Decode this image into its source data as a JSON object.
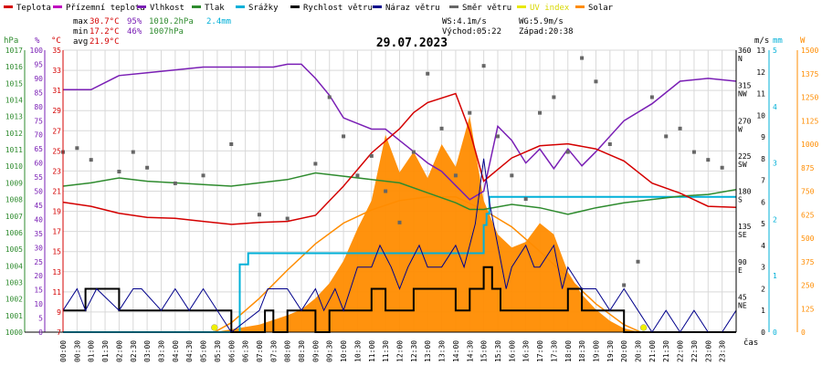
{
  "chart_data": {
    "type": "line",
    "title": "29.07.2023",
    "legend": [
      {
        "key": "teplota",
        "label": "Teplota",
        "color": "#d40000"
      },
      {
        "key": "prizemni",
        "label": "Přízemní teplota",
        "color": "#c000c0"
      },
      {
        "key": "vlhkost",
        "label": "Vlhkost",
        "color": "#7a1fb5"
      },
      {
        "key": "tlak",
        "label": "Tlak",
        "color": "#2e8b2e"
      },
      {
        "key": "srazky",
        "label": "Srážky",
        "color": "#00b0d8"
      },
      {
        "key": "rychlost",
        "label": "Rychlost větru",
        "color": "#000000"
      },
      {
        "key": "naraz",
        "label": "Náraz větru",
        "color": "#00008b"
      },
      {
        "key": "smer",
        "label": "Směr větru",
        "color": "#666666"
      },
      {
        "key": "uv",
        "label": "UV index",
        "color": "#e8e800"
      },
      {
        "key": "solar",
        "label": "Solar",
        "color": "#ff8c00"
      }
    ],
    "stats": {
      "max_label": "max",
      "max_temp": "30.7°C",
      "max_hum": "95%",
      "max_press": "1010.2hPa",
      "rain": "2.4mm",
      "min_label": "min",
      "min_temp": "17.2°C",
      "min_hum": "46%",
      "min_press": "1007hPa",
      "avg_label": "avg",
      "avg_temp": "21.9°C",
      "ws": "WS:4.1m/s",
      "wg": "WG:5.9m/s",
      "sunrise": "Východ:05:22",
      "sunset": "Západ:20:38"
    },
    "axis_units": {
      "hpa": "hPa",
      "pct": "%",
      "temp": "°C",
      "ms": "m/s",
      "mm": "mm",
      "w": "W",
      "time": "čas"
    },
    "axis_colors": {
      "hpa": "#2e8b2e",
      "pct": "#7a1fb5",
      "temp": "#d40000",
      "ms": "#000000",
      "mm": "#00b0d8",
      "w": "#ff8c00"
    },
    "hpa_ticks": [
      "1017",
      "1016",
      "1015",
      "1014",
      "1013",
      "1012",
      "1011",
      "1010",
      "1009",
      "1008",
      "1007",
      "1006",
      "1005",
      "1004",
      "1003",
      "1002",
      "1001",
      "1000"
    ],
    "pct_ticks": [
      "100",
      "95",
      "90",
      "85",
      "80",
      "75",
      "70",
      "65",
      "60",
      "55",
      "50",
      "45",
      "40",
      "35",
      "30",
      "25",
      "20",
      "15",
      "10",
      "5",
      "0"
    ],
    "temp_ticks": [
      "35",
      "33",
      "31",
      "29",
      "27",
      "25",
      "23",
      "21",
      "19",
      "17",
      "15",
      "13",
      "11",
      "9",
      "7"
    ],
    "dir_ticks": [
      "360\nN",
      "315\nNW",
      "270\nW",
      "225\nSW",
      "180\nS",
      "135\nSE",
      "90\nE",
      "45\nNE",
      ""
    ],
    "ms_ticks": [
      "13",
      "12",
      "11",
      "10",
      "9",
      "8",
      "7",
      "6",
      "5",
      "4",
      "3",
      "2",
      "1",
      "0"
    ],
    "mm_ticks": [
      "5",
      "4",
      "3",
      "2",
      "1",
      "0"
    ],
    "w_ticks": [
      "1500",
      "1375",
      "1250",
      "1125",
      "1000",
      "875",
      "750",
      "625",
      "500",
      "375",
      "250",
      "125",
      "0"
    ],
    "time_ticks": [
      "00:00",
      "00:30",
      "01:00",
      "01:30",
      "02:00",
      "02:30",
      "03:00",
      "03:30",
      "04:00",
      "04:30",
      "05:00",
      "05:30",
      "06:00",
      "06:30",
      "07:00",
      "07:30",
      "08:00",
      "08:30",
      "09:00",
      "09:30",
      "10:00",
      "10:30",
      "11:00",
      "11:30",
      "12:00",
      "12:30",
      "13:00",
      "13:30",
      "14:00",
      "14:30",
      "15:00",
      "15:30",
      "16:00",
      "16:30",
      "17:00",
      "17:30",
      "18:00",
      "18:30",
      "19:00",
      "19:30",
      "20:00",
      "20:30",
      "21:00",
      "21:30",
      "22:00",
      "22:30",
      "23:00",
      "23:30"
    ],
    "series": {
      "teplota": {
        "unit": "°C",
        "t": [
          0,
          1,
          2,
          3,
          4,
          5,
          6,
          7,
          8,
          9,
          10,
          11,
          12,
          12.5,
          13,
          14,
          14.5,
          15,
          16,
          17,
          18,
          19,
          20,
          21,
          22,
          23,
          24
        ],
        "v": [
          19.9,
          19.5,
          18.8,
          18.4,
          18.3,
          18.0,
          17.7,
          17.9,
          18.0,
          18.6,
          21.5,
          24.8,
          27.2,
          28.8,
          29.8,
          30.7,
          27.0,
          22.0,
          24.3,
          25.5,
          25.7,
          25.2,
          24.0,
          21.8,
          20.8,
          19.5,
          19.4
        ]
      },
      "vlhkost": {
        "unit": "%",
        "t": [
          0,
          1,
          2,
          3,
          4,
          5,
          6,
          7,
          7.5,
          8,
          8.5,
          9,
          9.5,
          10,
          10.5,
          11,
          11.5,
          12,
          12.5,
          13,
          13.5,
          14,
          14.5,
          15,
          15.5,
          16,
          16.5,
          17,
          17.5,
          18,
          18.5,
          19,
          20,
          21,
          22,
          23,
          24
        ],
        "v": [
          86,
          86,
          91,
          92,
          93,
          94,
          94,
          94,
          94,
          95,
          95,
          90,
          84,
          76,
          74,
          72,
          72,
          68,
          64,
          60,
          57,
          52,
          47,
          50,
          73,
          68,
          60,
          65,
          58,
          65,
          59,
          64,
          75,
          81,
          89,
          90,
          89
        ]
      },
      "tlak": {
        "unit": "hPa",
        "t": [
          0,
          1,
          2,
          3,
          4,
          5,
          6,
          7,
          8,
          9,
          10,
          11,
          12,
          13,
          14,
          14.5,
          15,
          16,
          17,
          18,
          19,
          20,
          21,
          22,
          23,
          24
        ],
        "v": [
          1008.8,
          1009.0,
          1009.3,
          1009.1,
          1009.0,
          1008.9,
          1008.8,
          1009.0,
          1009.2,
          1009.6,
          1009.4,
          1009.2,
          1009.0,
          1008.4,
          1007.8,
          1007.4,
          1007.4,
          1007.7,
          1007.5,
          1007.1,
          1007.5,
          1007.8,
          1008.0,
          1008.2,
          1008.3,
          1008.6
        ]
      },
      "srazky": {
        "unit": "mm",
        "t": [
          0,
          6.2,
          6.3,
          6.6,
          14.8,
          15.0,
          15.1,
          15.2,
          15.4,
          24
        ],
        "v": [
          0,
          0,
          1.2,
          1.4,
          1.4,
          1.9,
          2.1,
          2.4,
          2.4,
          2.4
        ]
      },
      "rychlost": {
        "unit": "m/s",
        "t": [
          0,
          0.6,
          0.8,
          1.0,
          2.0,
          2.5,
          3.0,
          4.0,
          5.0,
          6.0,
          7.0,
          7.2,
          7.5,
          8.0,
          8.5,
          9.0,
          9.5,
          10.0,
          10.5,
          11.0,
          11.5,
          12.0,
          12.5,
          13.0,
          13.5,
          14.0,
          14.5,
          14.9,
          15.0,
          15.3,
          15.6,
          16.0,
          16.5,
          17.0,
          17.5,
          18.0,
          18.5,
          19.0,
          20.0,
          21.0,
          22.0,
          23.0,
          24.0
        ],
        "v": [
          1,
          1,
          2,
          2,
          1,
          1,
          1,
          1,
          1,
          0,
          0,
          1,
          0,
          1,
          1,
          0,
          1,
          1,
          1,
          2,
          1,
          1,
          2,
          2,
          2,
          1,
          2,
          2,
          3,
          2,
          1,
          1,
          1,
          1,
          1,
          2,
          1,
          1,
          0,
          0,
          0,
          0,
          0
        ]
      },
      "naraz": {
        "unit": "m/s",
        "t": [
          0,
          0.5,
          0.8,
          1.2,
          2.0,
          2.5,
          2.8,
          3.5,
          4.0,
          4.5,
          5.0,
          6.0,
          7.0,
          7.3,
          8.0,
          8.5,
          9.0,
          9.3,
          9.7,
          10.0,
          10.5,
          11.0,
          11.3,
          11.7,
          12.0,
          12.3,
          12.7,
          13.0,
          13.5,
          14.0,
          14.3,
          14.7,
          15.0,
          15.2,
          15.5,
          15.8,
          16.0,
          16.5,
          16.8,
          17.0,
          17.5,
          17.8,
          18.0,
          18.5,
          19.0,
          19.5,
          20.0,
          20.5,
          21.0,
          21.5,
          22.0,
          22.5,
          23.0,
          23.5,
          24.0
        ],
        "v": [
          1,
          2,
          1,
          2,
          1,
          2,
          2,
          1,
          2,
          1,
          2,
          0,
          1,
          2,
          2,
          1,
          2,
          1,
          2,
          1,
          3,
          3,
          4,
          3,
          2,
          3,
          4,
          3,
          3,
          4,
          3,
          5,
          8,
          6,
          4,
          2,
          3,
          4,
          3,
          3,
          4,
          2,
          3,
          2,
          2,
          1,
          2,
          1,
          0,
          1,
          0,
          1,
          0,
          0,
          1
        ]
      },
      "smer": {
        "unit": "°",
        "t": [
          0,
          0.5,
          1.0,
          2.0,
          2.5,
          3.0,
          4.0,
          5.0,
          6.0,
          7.0,
          8.0,
          9.0,
          9.5,
          10.0,
          10.5,
          11.0,
          11.5,
          12.0,
          12.5,
          13.0,
          13.5,
          14.0,
          14.5,
          15.0,
          15.5,
          16.0,
          16.5,
          17.0,
          17.5,
          18.0,
          18.5,
          19.0,
          19.5,
          20.0,
          20.5,
          21.0,
          21.5,
          22.0,
          22.5,
          23.0,
          23.5
        ],
        "v": [
          230,
          235,
          220,
          205,
          230,
          210,
          190,
          200,
          240,
          150,
          145,
          215,
          300,
          250,
          200,
          225,
          180,
          140,
          230,
          330,
          260,
          200,
          280,
          340,
          250,
          200,
          170,
          280,
          300,
          230,
          350,
          320,
          240,
          60,
          90,
          300,
          250,
          260,
          230,
          220,
          210
        ]
      },
      "uv": {
        "unit": "",
        "t": [
          5.4,
          20.7
        ],
        "v": [
          0,
          0
        ]
      },
      "solar": {
        "unit": "W",
        "t": [
          5.4,
          6,
          7,
          8,
          9,
          10,
          11,
          12,
          13,
          14,
          15,
          16,
          17,
          18,
          19,
          20,
          20.6
        ],
        "v": [
          0,
          50,
          180,
          330,
          470,
          580,
          650,
          700,
          720,
          720,
          650,
          560,
          430,
          290,
          150,
          40,
          0
        ]
      },
      "solar_measured": {
        "unit": "W",
        "t": [
          5.4,
          6,
          7,
          8,
          8.5,
          9,
          9.5,
          10,
          10.5,
          11,
          11.5,
          12,
          12.5,
          13,
          13.5,
          14,
          14.5,
          15,
          15.5,
          16,
          16.5,
          17,
          17.5,
          18,
          18.5,
          19,
          19.5,
          20,
          20.6
        ],
        "v": [
          0,
          15,
          40,
          90,
          120,
          180,
          260,
          380,
          550,
          700,
          1050,
          850,
          960,
          820,
          1000,
          880,
          1150,
          700,
          520,
          450,
          480,
          580,
          520,
          320,
          200,
          120,
          60,
          20,
          0
        ]
      }
    },
    "x_range": [
      0,
      24
    ],
    "temp_range": [
      7,
      35
    ],
    "hpa_range": [
      1000,
      1017
    ],
    "pct_range": [
      0,
      100
    ],
    "dir_range": [
      0,
      360
    ],
    "ms_range": [
      0,
      13
    ],
    "mm_range": [
      0,
      5
    ],
    "w_range": [
      0,
      1500
    ],
    "grid": true
  }
}
